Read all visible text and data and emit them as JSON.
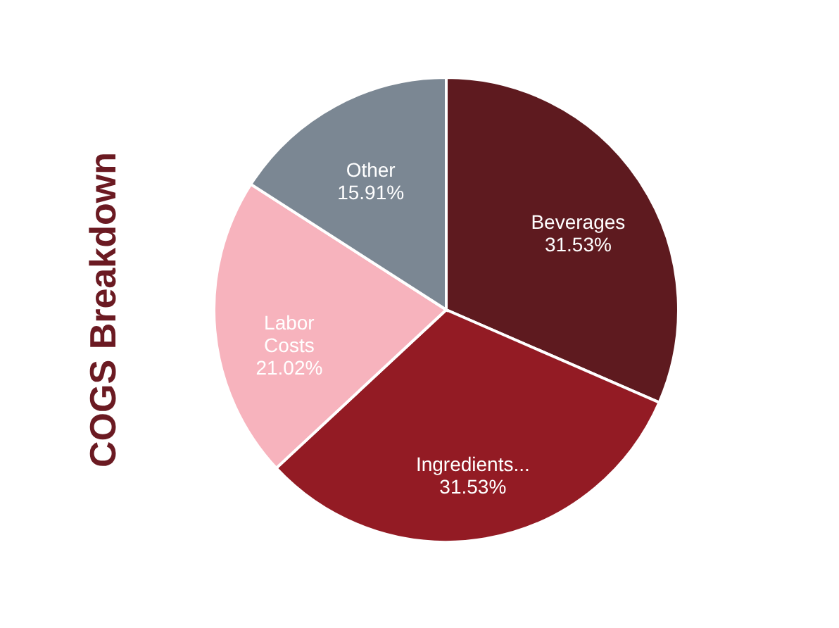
{
  "chart_data": {
    "type": "pie",
    "title": "COGS Breakdown",
    "categories": [
      "Beverages",
      "Ingredients...",
      "Labor Costs",
      "Other"
    ],
    "values": [
      31.53,
      31.53,
      21.02,
      15.91
    ],
    "colors": [
      "#5e1a1f",
      "#931b24",
      "#f7b3bd",
      "#7b8793"
    ],
    "value_labels": [
      "31.53%",
      "31.53%",
      "21.02%",
      "15.91%"
    ]
  }
}
